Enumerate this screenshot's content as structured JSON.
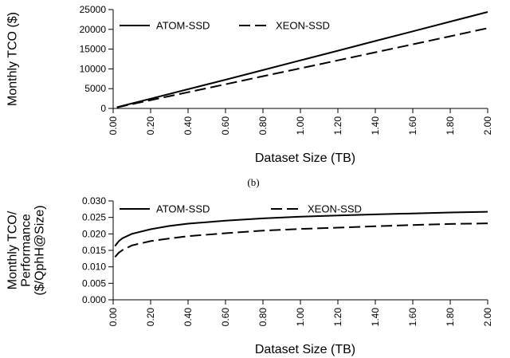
{
  "caption": "(b)",
  "chart_data": [
    {
      "type": "line",
      "xlabel": "Dataset Size (TB)",
      "ylabel": "Monthly TCO ($)",
      "xlim": [
        0,
        2.0
      ],
      "ylim": [
        0,
        25000
      ],
      "x_ticks": [
        "0.00",
        "0.20",
        "0.40",
        "0.60",
        "0.80",
        "1.00",
        "1.20",
        "1.40",
        "1.60",
        "1.80",
        "2.00"
      ],
      "y_ticks": [
        "0",
        "5000",
        "10000",
        "15000",
        "20000",
        "25000"
      ],
      "legend_position": "top-left",
      "grid": false,
      "x": [
        0.02,
        0.2,
        0.4,
        0.6,
        0.8,
        1.0,
        1.2,
        1.4,
        1.6,
        1.8,
        2.0
      ],
      "series": [
        {
          "name": "ATOM-SSD",
          "style": "solid",
          "color": "#000000",
          "values": [
            300,
            2450,
            4850,
            7250,
            9700,
            12150,
            14600,
            17050,
            19500,
            21950,
            24400
          ]
        },
        {
          "name": "XEON-SSD",
          "style": "dashed",
          "color": "#000000",
          "values": [
            250,
            2100,
            4100,
            6100,
            8150,
            10150,
            12150,
            14200,
            16200,
            18250,
            20300
          ]
        }
      ]
    },
    {
      "type": "line",
      "xlabel": "Dataset Size (TB)",
      "ylabel_lines": [
        "Monthly TCO/",
        "Performance",
        "($/QphH@Size)"
      ],
      "xlim": [
        0,
        2.0
      ],
      "ylim": [
        0,
        0.03
      ],
      "x_ticks": [
        "0.00",
        "0.20",
        "0.40",
        "0.60",
        "0.80",
        "1.00",
        "1.20",
        "1.40",
        "1.60",
        "1.80",
        "2.00"
      ],
      "y_ticks": [
        "0.000",
        "0.005",
        "0.010",
        "0.015",
        "0.020",
        "0.025",
        "0.030"
      ],
      "legend_position": "top",
      "grid": false,
      "x": [
        0.01,
        0.03,
        0.05,
        0.1,
        0.2,
        0.3,
        0.4,
        0.6,
        0.8,
        1.0,
        1.2,
        1.4,
        1.6,
        1.8,
        2.0
      ],
      "series": [
        {
          "name": "ATOM-SSD",
          "style": "solid",
          "color": "#000000",
          "values": [
            0.0163,
            0.0178,
            0.0187,
            0.02,
            0.0214,
            0.0224,
            0.0231,
            0.024,
            0.0247,
            0.0252,
            0.0256,
            0.0259,
            0.0262,
            0.0265,
            0.0267
          ]
        },
        {
          "name": "XEON-SSD",
          "style": "dashed",
          "color": "#000000",
          "values": [
            0.013,
            0.0143,
            0.0151,
            0.0165,
            0.0178,
            0.0186,
            0.0193,
            0.0202,
            0.021,
            0.0215,
            0.0219,
            0.0223,
            0.0227,
            0.023,
            0.0232
          ]
        }
      ]
    }
  ]
}
